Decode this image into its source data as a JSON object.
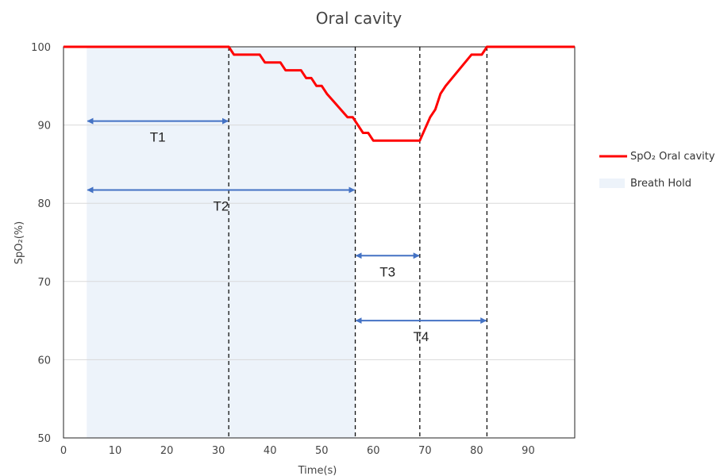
{
  "chart_data": {
    "type": "line",
    "title": "Oral cavity",
    "xlabel": "Time(s)",
    "ylabel": "SpO₂(%)",
    "xlim": [
      0,
      99
    ],
    "ylim": [
      50,
      100
    ],
    "x_ticks": [
      0,
      10,
      20,
      30,
      40,
      50,
      60,
      70,
      80,
      90
    ],
    "y_ticks": [
      50,
      60,
      70,
      80,
      90,
      100
    ],
    "grid": "horizontal",
    "legend_position": "right",
    "series": [
      {
        "name": "SpO₂ Oral cavity",
        "color": "#ff0000",
        "x": [
          0,
          32,
          33,
          38,
          39,
          42,
          43,
          46,
          47,
          48,
          49,
          50,
          51,
          55,
          56,
          58,
          59,
          60,
          69,
          71,
          72,
          73,
          74,
          79,
          81,
          82,
          99
        ],
        "y": [
          100,
          100,
          99,
          99,
          98,
          98,
          97,
          97,
          96,
          96,
          95,
          95,
          94,
          91,
          91,
          89,
          89,
          88,
          88,
          91,
          92,
          94,
          95,
          99,
          99,
          100,
          100
        ]
      }
    ],
    "breath_hold": {
      "name": "Breath Hold",
      "start": 4.5,
      "end": 56.5,
      "color": "#edf3fa"
    },
    "markers": [
      32,
      56.5,
      69,
      82
    ],
    "intervals": [
      {
        "label": "T1",
        "start": 4.5,
        "end": 32,
        "y": 90.5
      },
      {
        "label": "T2",
        "start": 4.5,
        "end": 56.5,
        "y": 81.7
      },
      {
        "label": "T3",
        "start": 56.5,
        "end": 69,
        "y": 73.3
      },
      {
        "label": "T4",
        "start": 56.5,
        "end": 82,
        "y": 65
      }
    ],
    "arrow_color": "#4472c4"
  }
}
